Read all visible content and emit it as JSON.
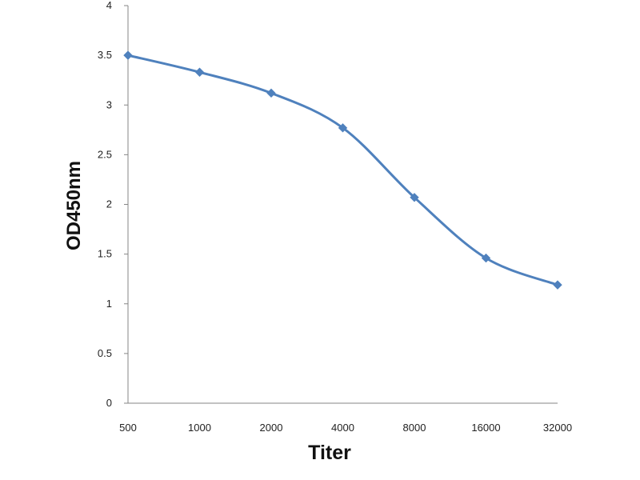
{
  "chart_data": {
    "type": "line",
    "title": "",
    "xlabel": "Titer",
    "ylabel": "OD450nm",
    "categories": [
      "500",
      "1000",
      "2000",
      "4000",
      "8000",
      "16000",
      "32000"
    ],
    "series": [
      {
        "values": [
          3.5,
          3.33,
          3.12,
          2.77,
          2.07,
          1.46,
          1.19
        ]
      }
    ],
    "ylim": [
      0,
      4
    ],
    "yticks": [
      "0",
      "0.5",
      "1",
      "1.5",
      "2",
      "2.5",
      "3",
      "3.5",
      "4"
    ],
    "grid": false,
    "legend": "none",
    "colors": {
      "series": "#4F81BD",
      "axis": "#868686"
    }
  }
}
